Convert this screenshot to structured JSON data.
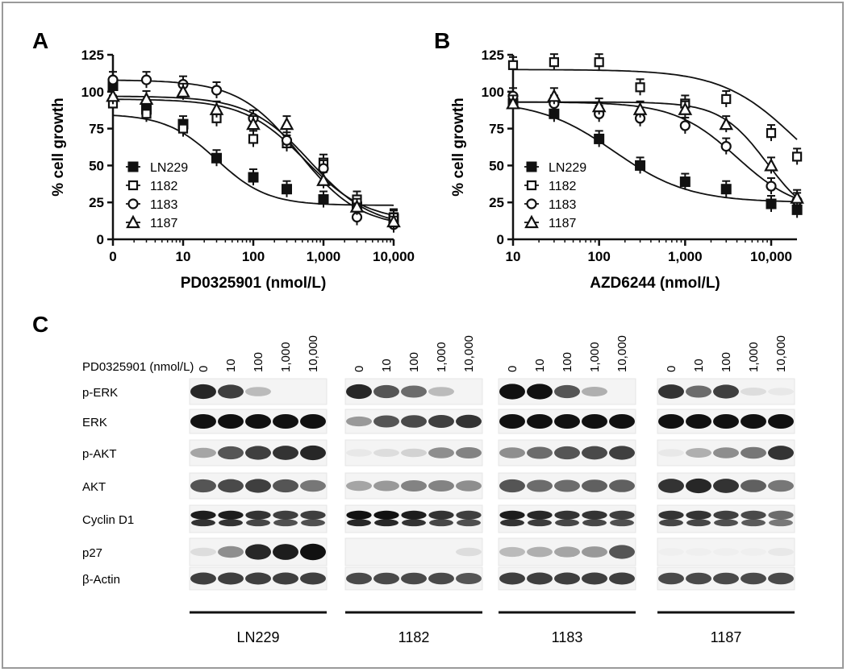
{
  "figure": {
    "panel_letters": [
      "A",
      "B",
      "C"
    ]
  },
  "chart_data": [
    {
      "type": "line",
      "panel": "A",
      "xlabel": "PD0325901 (nmol/L)",
      "ylabel": "% cell growth",
      "x_scale": "log",
      "x_ticks": [
        0,
        10,
        100,
        1000,
        10000
      ],
      "x_tick_labels": [
        "0",
        "10",
        "100",
        "1,000",
        "10,000"
      ],
      "y_ticks": [
        0,
        25,
        50,
        75,
        100,
        125
      ],
      "y_tick_labels": [
        "0",
        "25",
        "50",
        "75",
        "100",
        "125"
      ],
      "ylim": [
        0,
        125
      ],
      "legend": [
        "LN229",
        "1182",
        "1183",
        "1187"
      ],
      "legend_position": "lower-left",
      "series": [
        {
          "name": "LN229",
          "marker": "filled-square",
          "x": [
            1,
            3,
            10,
            30,
            100,
            300,
            1000,
            3000,
            10000
          ],
          "y": [
            104,
            88,
            78,
            55,
            42,
            34,
            27,
            22,
            14
          ],
          "curve": {
            "top": 85,
            "bottom": 23,
            "ic50": 30,
            "hill": 1.2
          }
        },
        {
          "name": "1182",
          "marker": "open-square",
          "x": [
            1,
            3,
            10,
            30,
            100,
            300,
            1000,
            3000,
            10000
          ],
          "y": [
            92,
            85,
            75,
            82,
            68,
            65,
            52,
            27,
            15
          ],
          "curve": {
            "top": 95,
            "bottom": 12,
            "ic50": 550,
            "hill": 1.0
          }
        },
        {
          "name": "1183",
          "marker": "open-circle",
          "x": [
            1,
            3,
            10,
            30,
            100,
            300,
            1000,
            3000,
            10000
          ],
          "y": [
            108,
            108,
            105,
            101,
            82,
            67,
            48,
            15,
            10
          ],
          "curve": {
            "top": 108,
            "bottom": 8,
            "ic50": 450,
            "hill": 1.0
          }
        },
        {
          "name": "1187",
          "marker": "open-triangle",
          "x": [
            1,
            3,
            10,
            30,
            100,
            300,
            1000,
            3000,
            10000
          ],
          "y": [
            97,
            95,
            100,
            88,
            78,
            78,
            40,
            22,
            12
          ],
          "curve": {
            "top": 97,
            "bottom": 8,
            "ic50": 650,
            "hill": 1.0
          }
        }
      ]
    },
    {
      "type": "line",
      "panel": "B",
      "xlabel": "AZD6244 (nmol/L)",
      "ylabel": "% cell growth",
      "x_scale": "log",
      "x_ticks": [
        10,
        100,
        1000,
        10000
      ],
      "x_tick_labels": [
        "10",
        "100",
        "1,000",
        "10,000"
      ],
      "y_ticks": [
        0,
        25,
        50,
        75,
        100,
        125
      ],
      "y_tick_labels": [
        "0",
        "25",
        "50",
        "75",
        "100",
        "125"
      ],
      "ylim": [
        0,
        125
      ],
      "legend": [
        "LN229",
        "1182",
        "1183",
        "1187"
      ],
      "legend_position": "lower-left",
      "series": [
        {
          "name": "LN229",
          "marker": "filled-square",
          "x": [
            10,
            30,
            100,
            300,
            1000,
            3000,
            10000,
            20000
          ],
          "y": [
            92,
            85,
            68,
            50,
            39,
            34,
            24,
            20
          ],
          "curve": {
            "top": 94,
            "bottom": 25,
            "ic50": 150,
            "hill": 1.0
          }
        },
        {
          "name": "1182",
          "marker": "open-square",
          "x": [
            10,
            30,
            100,
            300,
            1000,
            3000,
            10000,
            20000
          ],
          "y": [
            118,
            120,
            120,
            103,
            92,
            95,
            72,
            56
          ],
          "curve": {
            "top": 115,
            "bottom": 20,
            "ic50": 20000,
            "hill": 1.0
          }
        },
        {
          "name": "1183",
          "marker": "open-circle",
          "x": [
            10,
            30,
            100,
            300,
            1000,
            3000,
            10000,
            20000
          ],
          "y": [
            97,
            92,
            85,
            82,
            77,
            63,
            36,
            26
          ],
          "curve": {
            "top": 93,
            "bottom": 18,
            "ic50": 4000,
            "hill": 1.2
          }
        },
        {
          "name": "1187",
          "marker": "open-triangle",
          "x": [
            10,
            30,
            100,
            300,
            1000,
            3000,
            10000,
            20000
          ],
          "y": [
            92,
            97,
            90,
            88,
            88,
            78,
            50,
            28
          ],
          "curve": {
            "top": 93,
            "bottom": 10,
            "ic50": 9000,
            "hill": 1.6
          }
        }
      ]
    }
  ],
  "blot": {
    "treatment_label": "PD0325901 (nmol/L)",
    "doses": [
      "0",
      "10",
      "100",
      "1,000",
      "10,000"
    ],
    "rows": [
      "p-ERK",
      "ERK",
      "p-AKT",
      "AKT",
      "Cyclin D1",
      "p27",
      "β-Actin"
    ],
    "cell_lines": [
      "LN229",
      "1182",
      "1183",
      "1187"
    ],
    "intensity": [
      [
        [
          0.9,
          0.8,
          0.25,
          0,
          0
        ],
        [
          0.9,
          0.7,
          0.6,
          0.25,
          0
        ],
        [
          1,
          1,
          0.7,
          0.3,
          0
        ],
        [
          0.85,
          0.6,
          0.8,
          0.1,
          0.05
        ]
      ],
      [
        [
          1,
          1,
          1,
          1,
          1
        ],
        [
          0.4,
          0.7,
          0.75,
          0.8,
          0.85
        ],
        [
          1,
          1,
          1,
          1,
          1
        ],
        [
          1,
          1,
          1,
          1,
          1
        ]
      ],
      [
        [
          0.35,
          0.7,
          0.8,
          0.85,
          0.9
        ],
        [
          0.05,
          0.1,
          0.15,
          0.45,
          0.5
        ],
        [
          0.45,
          0.6,
          0.7,
          0.75,
          0.8
        ],
        [
          0.05,
          0.3,
          0.45,
          0.55,
          0.85
        ]
      ],
      [
        [
          0.7,
          0.75,
          0.8,
          0.7,
          0.55
        ],
        [
          0.35,
          0.4,
          0.5,
          0.5,
          0.45
        ],
        [
          0.7,
          0.6,
          0.6,
          0.65,
          0.65
        ],
        [
          0.85,
          0.9,
          0.85,
          0.65,
          0.55
        ]
      ],
      [
        [
          0.95,
          0.95,
          0.85,
          0.8,
          0.8
        ],
        [
          1,
          1,
          0.95,
          0.85,
          0.8
        ],
        [
          0.95,
          0.9,
          0.85,
          0.85,
          0.8
        ],
        [
          0.85,
          0.85,
          0.8,
          0.75,
          0.6
        ]
      ],
      [
        [
          0.1,
          0.45,
          0.9,
          0.95,
          1
        ],
        [
          0,
          0,
          0,
          0,
          0.1
        ],
        [
          0.25,
          0.3,
          0.35,
          0.4,
          0.7
        ],
        [
          0.02,
          0.02,
          0.02,
          0.02,
          0.05
        ]
      ],
      [
        [
          0.8,
          0.8,
          0.8,
          0.8,
          0.8
        ],
        [
          0.75,
          0.75,
          0.75,
          0.75,
          0.7
        ],
        [
          0.8,
          0.8,
          0.8,
          0.8,
          0.8
        ],
        [
          0.75,
          0.75,
          0.75,
          0.75,
          0.75
        ]
      ]
    ],
    "doublet_row": "Cyclin D1"
  }
}
